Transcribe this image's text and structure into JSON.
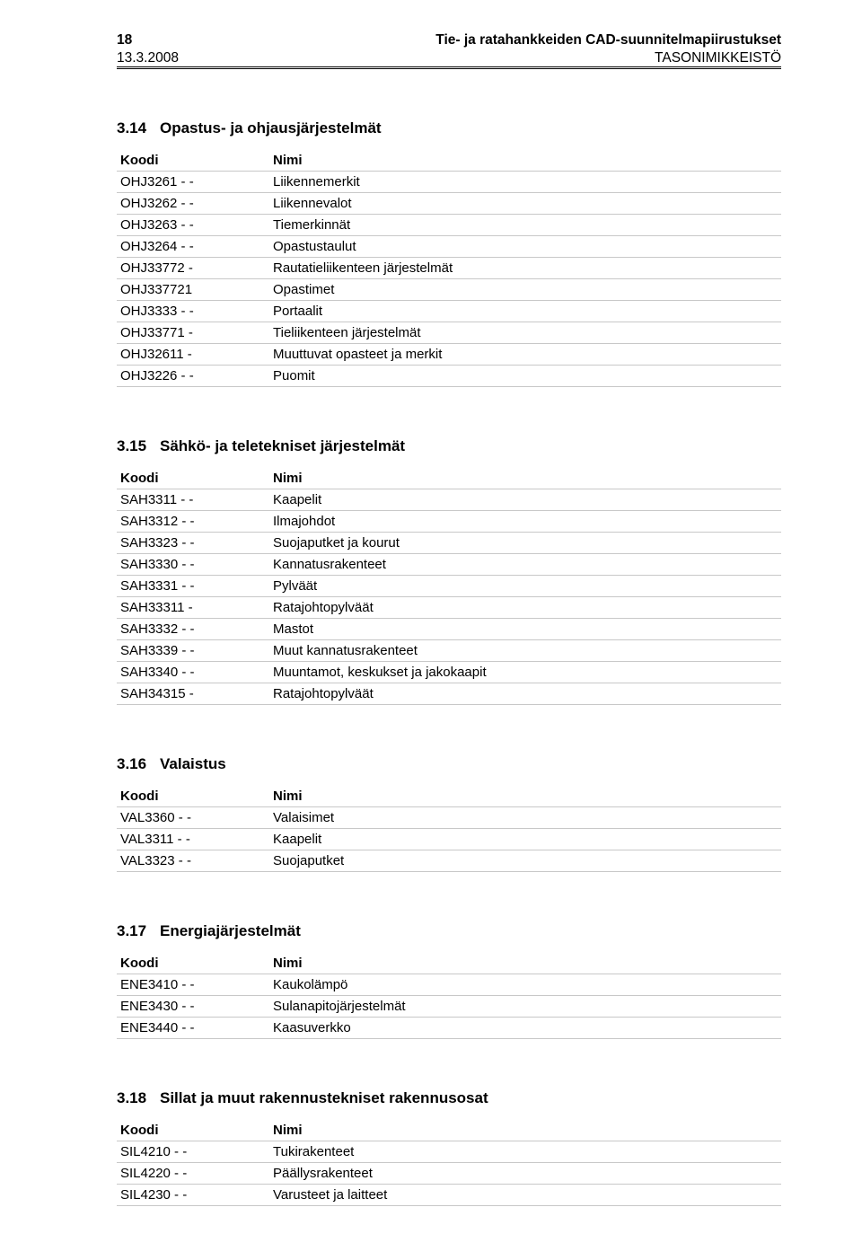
{
  "header": {
    "page_number": "18",
    "title": "Tie- ja ratahankkeiden CAD-suunnitelmapiirustukset",
    "date": "13.3.2008",
    "subtitle": "TASONIMIKKEISTÖ"
  },
  "columns": {
    "code": "Koodi",
    "name": "Nimi"
  },
  "sections": [
    {
      "num": "3.14",
      "title": "Opastus- ja ohjausjärjestelmät",
      "rows": [
        {
          "code": "OHJ3261 - -",
          "name": "Liikennemerkit"
        },
        {
          "code": "OHJ3262 - -",
          "name": "Liikennevalot"
        },
        {
          "code": "OHJ3263 - -",
          "name": "Tiemerkinnät"
        },
        {
          "code": "OHJ3264 - -",
          "name": "Opastustaulut"
        },
        {
          "code": "OHJ33772 -",
          "name": "Rautatieliikenteen järjestelmät"
        },
        {
          "code": "OHJ337721",
          "name": "Opastimet"
        },
        {
          "code": "OHJ3333 - -",
          "name": "Portaalit"
        },
        {
          "code": "OHJ33771 -",
          "name": "Tieliikenteen järjestelmät"
        },
        {
          "code": "OHJ32611 -",
          "name": "Muuttuvat opasteet ja merkit"
        },
        {
          "code": "OHJ3226 - -",
          "name": "Puomit"
        }
      ]
    },
    {
      "num": "3.15",
      "title": "Sähkö- ja teletekniset järjestelmät",
      "rows": [
        {
          "code": "SAH3311 - -",
          "name": "Kaapelit"
        },
        {
          "code": "SAH3312 - -",
          "name": "Ilmajohdot"
        },
        {
          "code": "SAH3323 - -",
          "name": "Suojaputket ja kourut"
        },
        {
          "code": "SAH3330 - -",
          "name": "Kannatusrakenteet"
        },
        {
          "code": "SAH3331 - -",
          "name": "Pylväät"
        },
        {
          "code": "SAH33311 -",
          "name": "Ratajohtopylväät"
        },
        {
          "code": "SAH3332 - -",
          "name": "Mastot"
        },
        {
          "code": "SAH3339 - -",
          "name": "Muut kannatusrakenteet"
        },
        {
          "code": "SAH3340 - -",
          "name": "Muuntamot, keskukset ja jakokaapit"
        },
        {
          "code": "SAH34315 -",
          "name": "Ratajohtopylväät"
        }
      ]
    },
    {
      "num": "3.16",
      "title": "Valaistus",
      "rows": [
        {
          "code": "VAL3360 - -",
          "name": "Valaisimet"
        },
        {
          "code": "VAL3311 - -",
          "name": "Kaapelit"
        },
        {
          "code": "VAL3323 - -",
          "name": "Suojaputket"
        }
      ]
    },
    {
      "num": "3.17",
      "title": "Energiajärjestelmät",
      "rows": [
        {
          "code": "ENE3410 - -",
          "name": "Kaukolämpö"
        },
        {
          "code": "ENE3430 - -",
          "name": "Sulanapitojärjestelmät"
        },
        {
          "code": "ENE3440 - -",
          "name": "Kaasuverkko"
        }
      ]
    },
    {
      "num": "3.18",
      "title": "Sillat ja muut rakennustekniset rakennusosat",
      "rows": [
        {
          "code": "SIL4210 - -",
          "name": "Tukirakenteet"
        },
        {
          "code": "SIL4220 - -",
          "name": "Päällysrakenteet"
        },
        {
          "code": "SIL4230 - -",
          "name": "Varusteet ja laitteet"
        }
      ]
    }
  ]
}
